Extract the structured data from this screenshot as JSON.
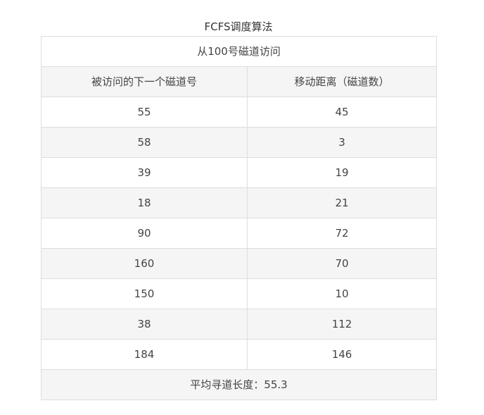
{
  "caption": "FCFS调度算法",
  "start_row": "从100号磁道访问",
  "headers": {
    "next_track": "被访问的下一个磁道号",
    "distance": "移动距离（磁道数）"
  },
  "rows": [
    {
      "track": "55",
      "distance": "45"
    },
    {
      "track": "58",
      "distance": "3"
    },
    {
      "track": "39",
      "distance": "19"
    },
    {
      "track": "18",
      "distance": "21"
    },
    {
      "track": "90",
      "distance": "72"
    },
    {
      "track": "160",
      "distance": "70"
    },
    {
      "track": "150",
      "distance": "10"
    },
    {
      "track": "38",
      "distance": "112"
    },
    {
      "track": "184",
      "distance": "146"
    }
  ],
  "footer": "平均寻道长度：55.3"
}
